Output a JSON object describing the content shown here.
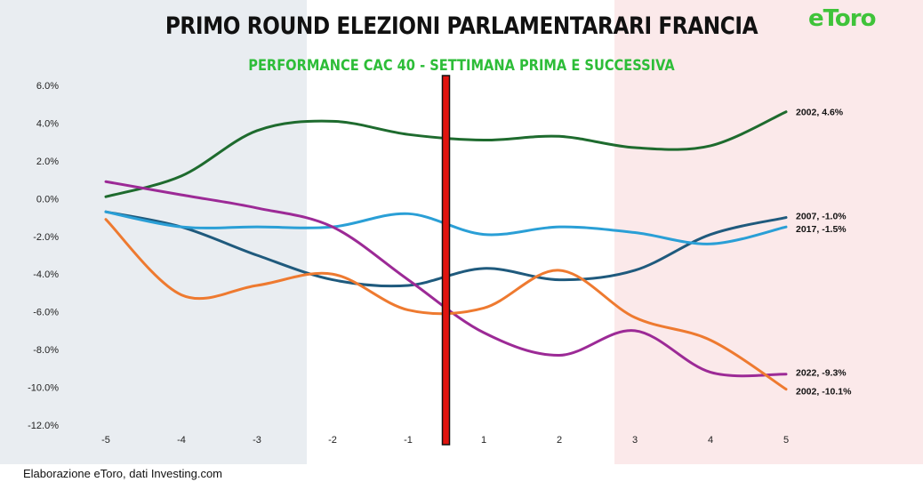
{
  "title": "PRIMO ROUND ELEZIONI PARLAMENTARARI FRANCIA",
  "subtitle": "PERFORMANCE CAC 40 - SETTIMANA PRIMA E SUCCESSIVA",
  "logo": "eToro",
  "source": "Elaborazione eToro, dati Investing.com",
  "colors": {
    "subtitle": "#2dbd38",
    "logo": "#3fc33a",
    "band_left": "#e9edf1",
    "band_right": "#fbe9ea",
    "election_marker": "#e0140f"
  },
  "chart_data": {
    "type": "line",
    "x": [
      -5,
      -4,
      -3,
      -2,
      -1,
      1,
      2,
      3,
      4,
      5
    ],
    "x_tick_labels": [
      "-5",
      "-4",
      "-3",
      "-2",
      "-1",
      "1",
      "2",
      "3",
      "4",
      "5"
    ],
    "ylim": [
      -12,
      6
    ],
    "y_ticks": [
      -12,
      -10,
      -8,
      -6,
      -4,
      -2,
      0,
      2,
      4,
      6
    ],
    "y_tick_labels": [
      "-12.0%",
      "-10.0%",
      "-8.0%",
      "-6.0%",
      "-4.0%",
      "-2.0%",
      "0.0%",
      "2.0%",
      "4.0%",
      "6.0%"
    ],
    "grid": false,
    "legend": "none",
    "election_marker_between": [
      -1,
      1
    ],
    "series": [
      {
        "label": "2002, 4.6%",
        "color": "#1e6b2e",
        "values": [
          0.1,
          1.2,
          3.6,
          4.1,
          3.4,
          3.1,
          3.3,
          2.7,
          2.8,
          4.6
        ]
      },
      {
        "label": "2007, -1.0%",
        "color": "#1f5a7d",
        "values": [
          -0.7,
          -1.5,
          -3.0,
          -4.3,
          -4.6,
          -3.7,
          -4.3,
          -3.8,
          -1.9,
          -1.0
        ]
      },
      {
        "label": "2017, -1.5%",
        "color": "#2a9fd6",
        "values": [
          -0.7,
          -1.5,
          -1.5,
          -1.5,
          -0.8,
          -1.9,
          -1.5,
          -1.8,
          -2.4,
          -1.5
        ]
      },
      {
        "label": "2022, -9.3%",
        "color": "#9c2a96",
        "values": [
          0.9,
          0.2,
          -0.5,
          -1.5,
          -4.3,
          -7.1,
          -8.3,
          -7.0,
          -9.2,
          -9.3
        ]
      },
      {
        "label": "2002, -10.1%",
        "color": "#ee7a30",
        "values": [
          -1.1,
          -5.1,
          -4.6,
          -4.0,
          -5.9,
          -5.8,
          -3.8,
          -6.3,
          -7.5,
          -10.1
        ]
      }
    ]
  }
}
